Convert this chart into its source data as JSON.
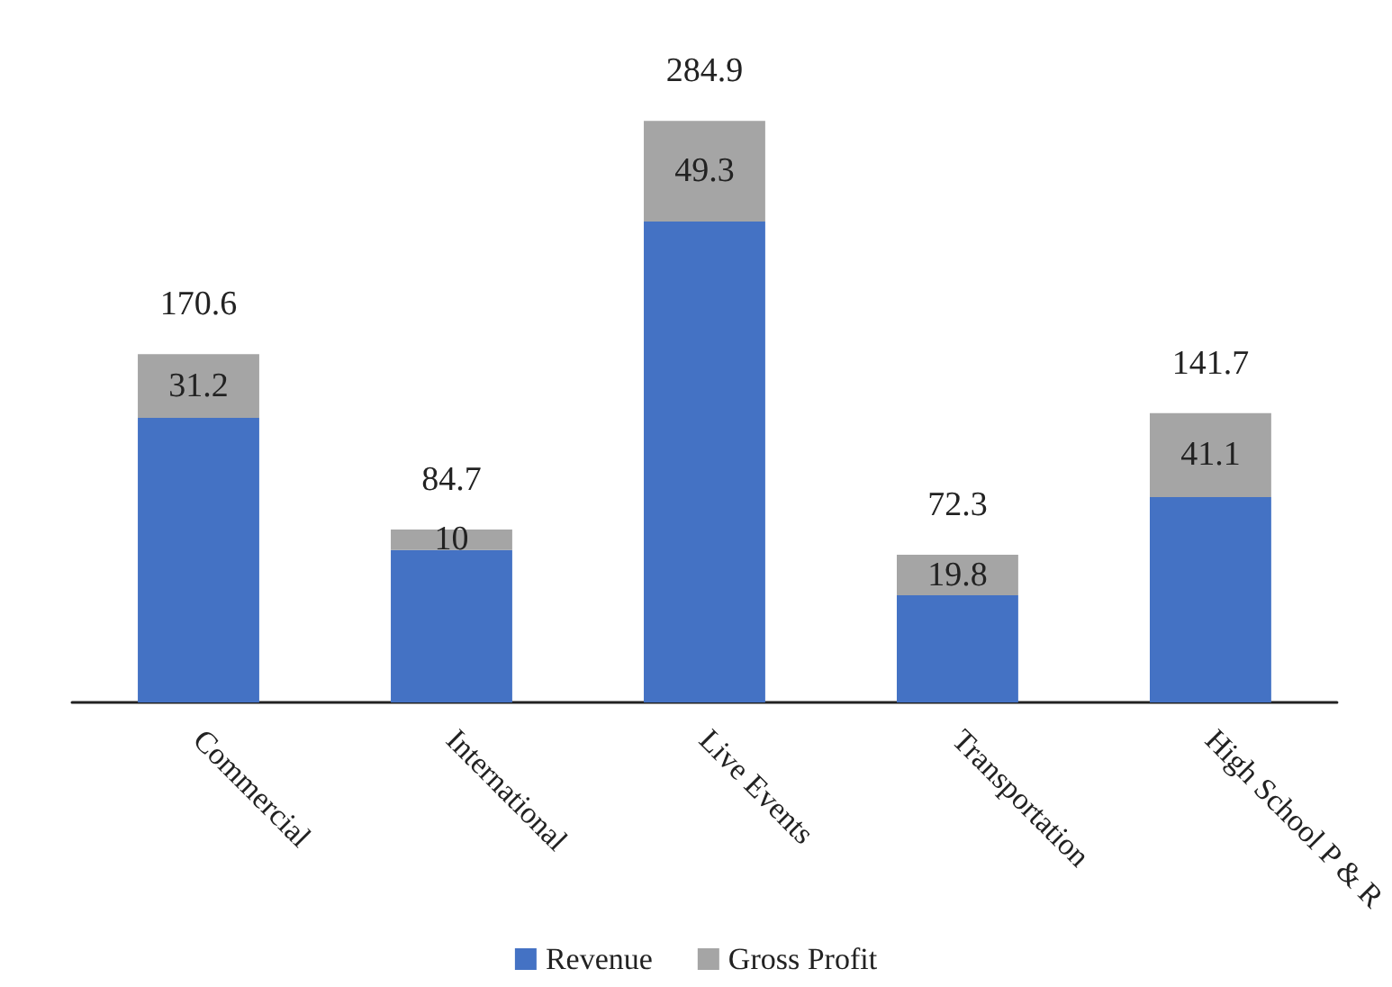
{
  "chart_data": {
    "type": "bar",
    "stacked": true,
    "categories": [
      "Commercial",
      "International",
      "Live Events",
      "Transportation",
      "High School P & R"
    ],
    "series": [
      {
        "name": "Revenue",
        "color": "#4472c4",
        "values": [
          139.4,
          74.7,
          235.6,
          52.5,
          100.6
        ]
      },
      {
        "name": "Gross Profit",
        "color": "#a5a5a5",
        "values": [
          31.2,
          10,
          49.3,
          19.8,
          41.1
        ],
        "value_labels": [
          "31.2",
          "10",
          "49.3",
          "19.8",
          "41.1"
        ]
      }
    ],
    "totals": [
      "170.6",
      "84.7",
      "284.9",
      "72.3",
      "141.7"
    ],
    "legend": "bottom"
  }
}
